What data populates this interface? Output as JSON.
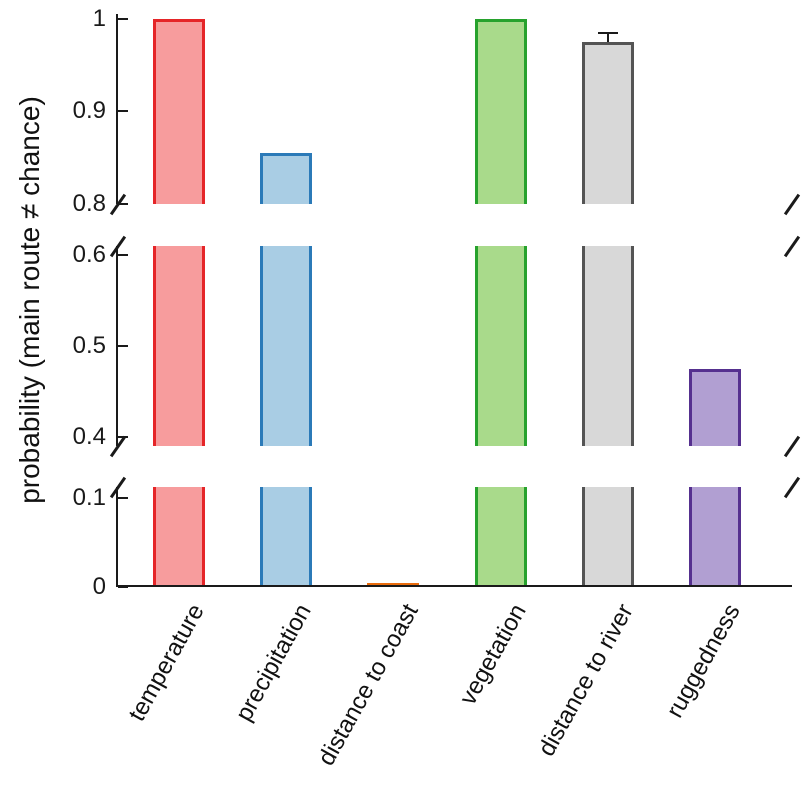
{
  "chart_data": {
    "type": "bar",
    "title": "",
    "xlabel": "",
    "ylabel": "probability (main route ≠ chance)",
    "categories": [
      "temperature",
      "precipitation",
      "distance to coast",
      "vegetation",
      "distance to river",
      "ruggedness"
    ],
    "values": [
      1.0,
      0.855,
      0.005,
      1.0,
      0.975,
      0.475
    ],
    "error_up": [
      0,
      0,
      0,
      0,
      0.01,
      0
    ],
    "bar_colors": [
      {
        "fill": "#f79c9d",
        "edge": "#e52528"
      },
      {
        "fill": "#a9cde4",
        "edge": "#2b7ab8"
      },
      {
        "fill": "#f58220",
        "edge": "#e96b0c"
      },
      {
        "fill": "#a9da8b",
        "edge": "#27a22d"
      },
      {
        "fill": "#d8d8d8",
        "edge": "#545454"
      },
      {
        "fill": "#b19fd2",
        "edge": "#55308f"
      }
    ],
    "axis_color": "#1a1a1a",
    "broken_y_axis": true,
    "grid": false,
    "legend_position": "none",
    "panels": [
      {
        "min": 0.8,
        "max": 1.005,
        "ticks": [
          1,
          0.9,
          0.8
        ],
        "tick_labels": [
          "1",
          "0.9",
          "0.8"
        ]
      },
      {
        "min": 0.39,
        "max": 0.61,
        "ticks": [
          0.6,
          0.5,
          0.4
        ],
        "tick_labels": [
          "0.6",
          "0.5",
          "0.4"
        ]
      },
      {
        "min": 0,
        "max": 0.112,
        "ticks": [
          0.1,
          0
        ],
        "tick_labels": [
          "0.1",
          "0"
        ]
      }
    ]
  }
}
